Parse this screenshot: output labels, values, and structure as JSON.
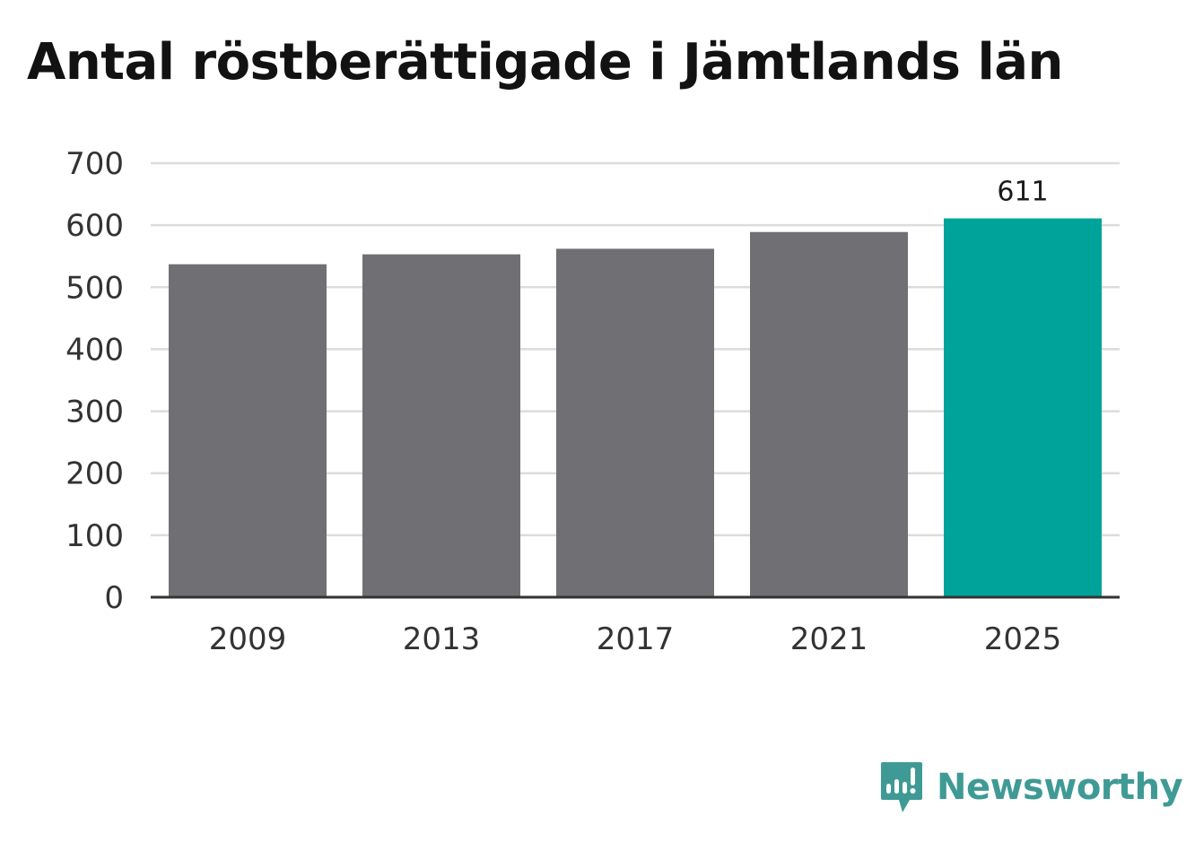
{
  "chart_data": {
    "type": "bar",
    "title": "Antal röstberättigade i Jämtlands län",
    "categories": [
      "2009",
      "2013",
      "2017",
      "2021",
      "2025"
    ],
    "values": [
      537,
      553,
      562,
      589,
      611
    ],
    "data_labels": [
      "",
      "",
      "",
      "",
      "611"
    ],
    "ylim": [
      0,
      700
    ],
    "yticks": [
      "0",
      "100",
      "200",
      "300",
      "400",
      "500",
      "600",
      "700"
    ],
    "grid": true,
    "colors": {
      "bar": "#706f74",
      "highlight": "#00a39a",
      "grid": "#dcdcdc",
      "axis": "#333333"
    }
  },
  "brand": {
    "name": "Newsworthy",
    "icon": "newsworthy-logo-icon",
    "color": "#3f9a95"
  }
}
